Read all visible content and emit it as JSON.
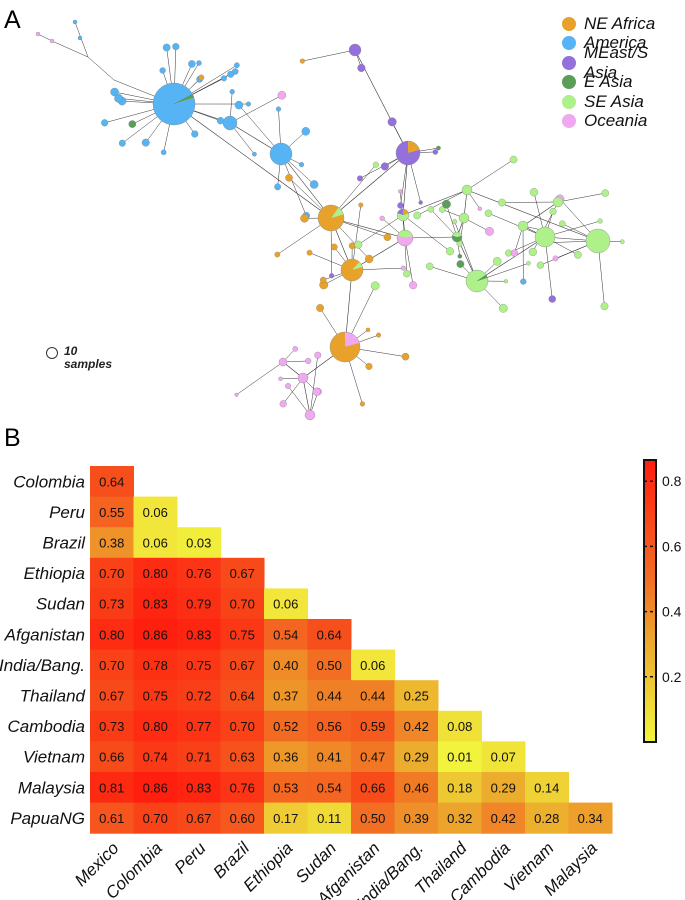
{
  "panels": {
    "a_label": "A",
    "b_label": "B"
  },
  "network": {
    "legend": [
      {
        "label": "NE Africa",
        "color": "#E8A22C"
      },
      {
        "label": "America",
        "color": "#56B4F5"
      },
      {
        "label": "MEast/S Asia",
        "color": "#9370DB"
      },
      {
        "label": "E Asia",
        "color": "#5A9E5A"
      },
      {
        "label": "SE Asia",
        "color": "#AEF08A"
      },
      {
        "label": "Oceania",
        "color": "#F0A8F0"
      }
    ],
    "scale_number": "10",
    "scale_unit": "samples"
  },
  "chart_data": {
    "type": "heatmap",
    "rows": [
      "Colombia",
      "Peru",
      "Brazil",
      "Ethiopia",
      "Sudan",
      "Afganistan",
      "India/Bang.",
      "Thailand",
      "Cambodia",
      "Vietnam",
      "Malaysia",
      "PapuaNG"
    ],
    "columns": [
      "Mexico",
      "Colombia",
      "Peru",
      "Brazil",
      "Ethiopia",
      "Sudan",
      "Afganistan",
      "India/Bang.",
      "Thailand",
      "Cambodia",
      "Vietnam",
      "Malaysia"
    ],
    "values": [
      [
        0.64
      ],
      [
        0.55,
        0.06
      ],
      [
        0.38,
        0.06,
        0.03
      ],
      [
        0.7,
        0.8,
        0.76,
        0.67
      ],
      [
        0.73,
        0.83,
        0.79,
        0.7,
        0.06
      ],
      [
        0.8,
        0.86,
        0.83,
        0.75,
        0.54,
        0.64
      ],
      [
        0.7,
        0.78,
        0.75,
        0.67,
        0.4,
        0.5,
        0.06
      ],
      [
        0.67,
        0.75,
        0.72,
        0.64,
        0.37,
        0.44,
        0.44,
        0.25
      ],
      [
        0.73,
        0.8,
        0.77,
        0.7,
        0.52,
        0.56,
        0.59,
        0.42,
        0.08
      ],
      [
        0.66,
        0.74,
        0.71,
        0.63,
        0.36,
        0.41,
        0.47,
        0.29,
        0.01,
        0.07
      ],
      [
        0.81,
        0.86,
        0.83,
        0.76,
        0.53,
        0.54,
        0.66,
        0.46,
        0.18,
        0.29,
        0.14
      ],
      [
        0.61,
        0.7,
        0.67,
        0.6,
        0.17,
        0.11,
        0.5,
        0.39,
        0.32,
        0.42,
        0.28,
        0.34
      ]
    ],
    "colorbar": {
      "range": [
        0,
        0.865
      ],
      "ticks": [
        "0.2",
        "0.4",
        "0.6",
        "0.8"
      ],
      "colors": [
        "#F2F53C",
        "#ECAA2D",
        "#F26E23",
        "#FF1E0F"
      ]
    }
  }
}
